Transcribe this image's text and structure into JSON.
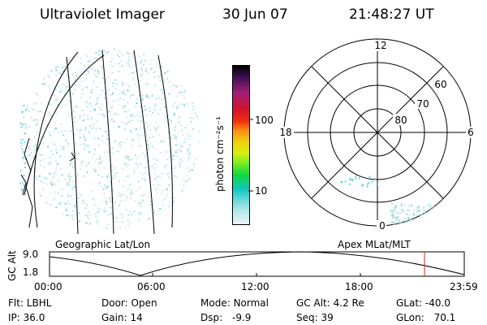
{
  "header": {
    "title": "Ultraviolet Imager",
    "date": "30 Jun 07",
    "time": "21:48:27 UT"
  },
  "colorbar": {
    "label": "photon cm⁻²s⁻¹",
    "ticks": [
      "100",
      "10"
    ]
  },
  "polar": {
    "mlt_labels": [
      "12",
      "18",
      "6",
      "0"
    ],
    "lat_labels": [
      "60",
      "70",
      "80"
    ]
  },
  "labels": {
    "geo": "Geographic Lat/Lon",
    "apex": "Apex MLat/MLT"
  },
  "timeline": {
    "axis_title": "GC Alt",
    "y_ticks": [
      "9.0",
      "1.8"
    ],
    "x_ticks": [
      "00:00",
      "06:00",
      "12:00",
      "18:00",
      "23:59"
    ]
  },
  "info": {
    "row1": [
      {
        "label": "Flt:",
        "value": "LBHL"
      },
      {
        "label": "Door:",
        "value": "Open"
      },
      {
        "label": "Mode:",
        "value": "Normal"
      },
      {
        "label": "GC Alt:",
        "value": "4.2 Re"
      },
      {
        "label": "GLat:",
        "value": "-40.0"
      }
    ],
    "row2": [
      {
        "label": "IP:",
        "value": "36.0"
      },
      {
        "label": "Gain:",
        "value": "14"
      },
      {
        "label": "Dsp:",
        "value": "-9.9"
      },
      {
        "label": "Seq:",
        "value": "39"
      },
      {
        "label": "GLon:",
        "value": "70.1"
      }
    ]
  },
  "colors": {
    "marker": "#cc2222",
    "speckle": "#9fd8dc",
    "speckle_bright": "#40c8d0"
  }
}
